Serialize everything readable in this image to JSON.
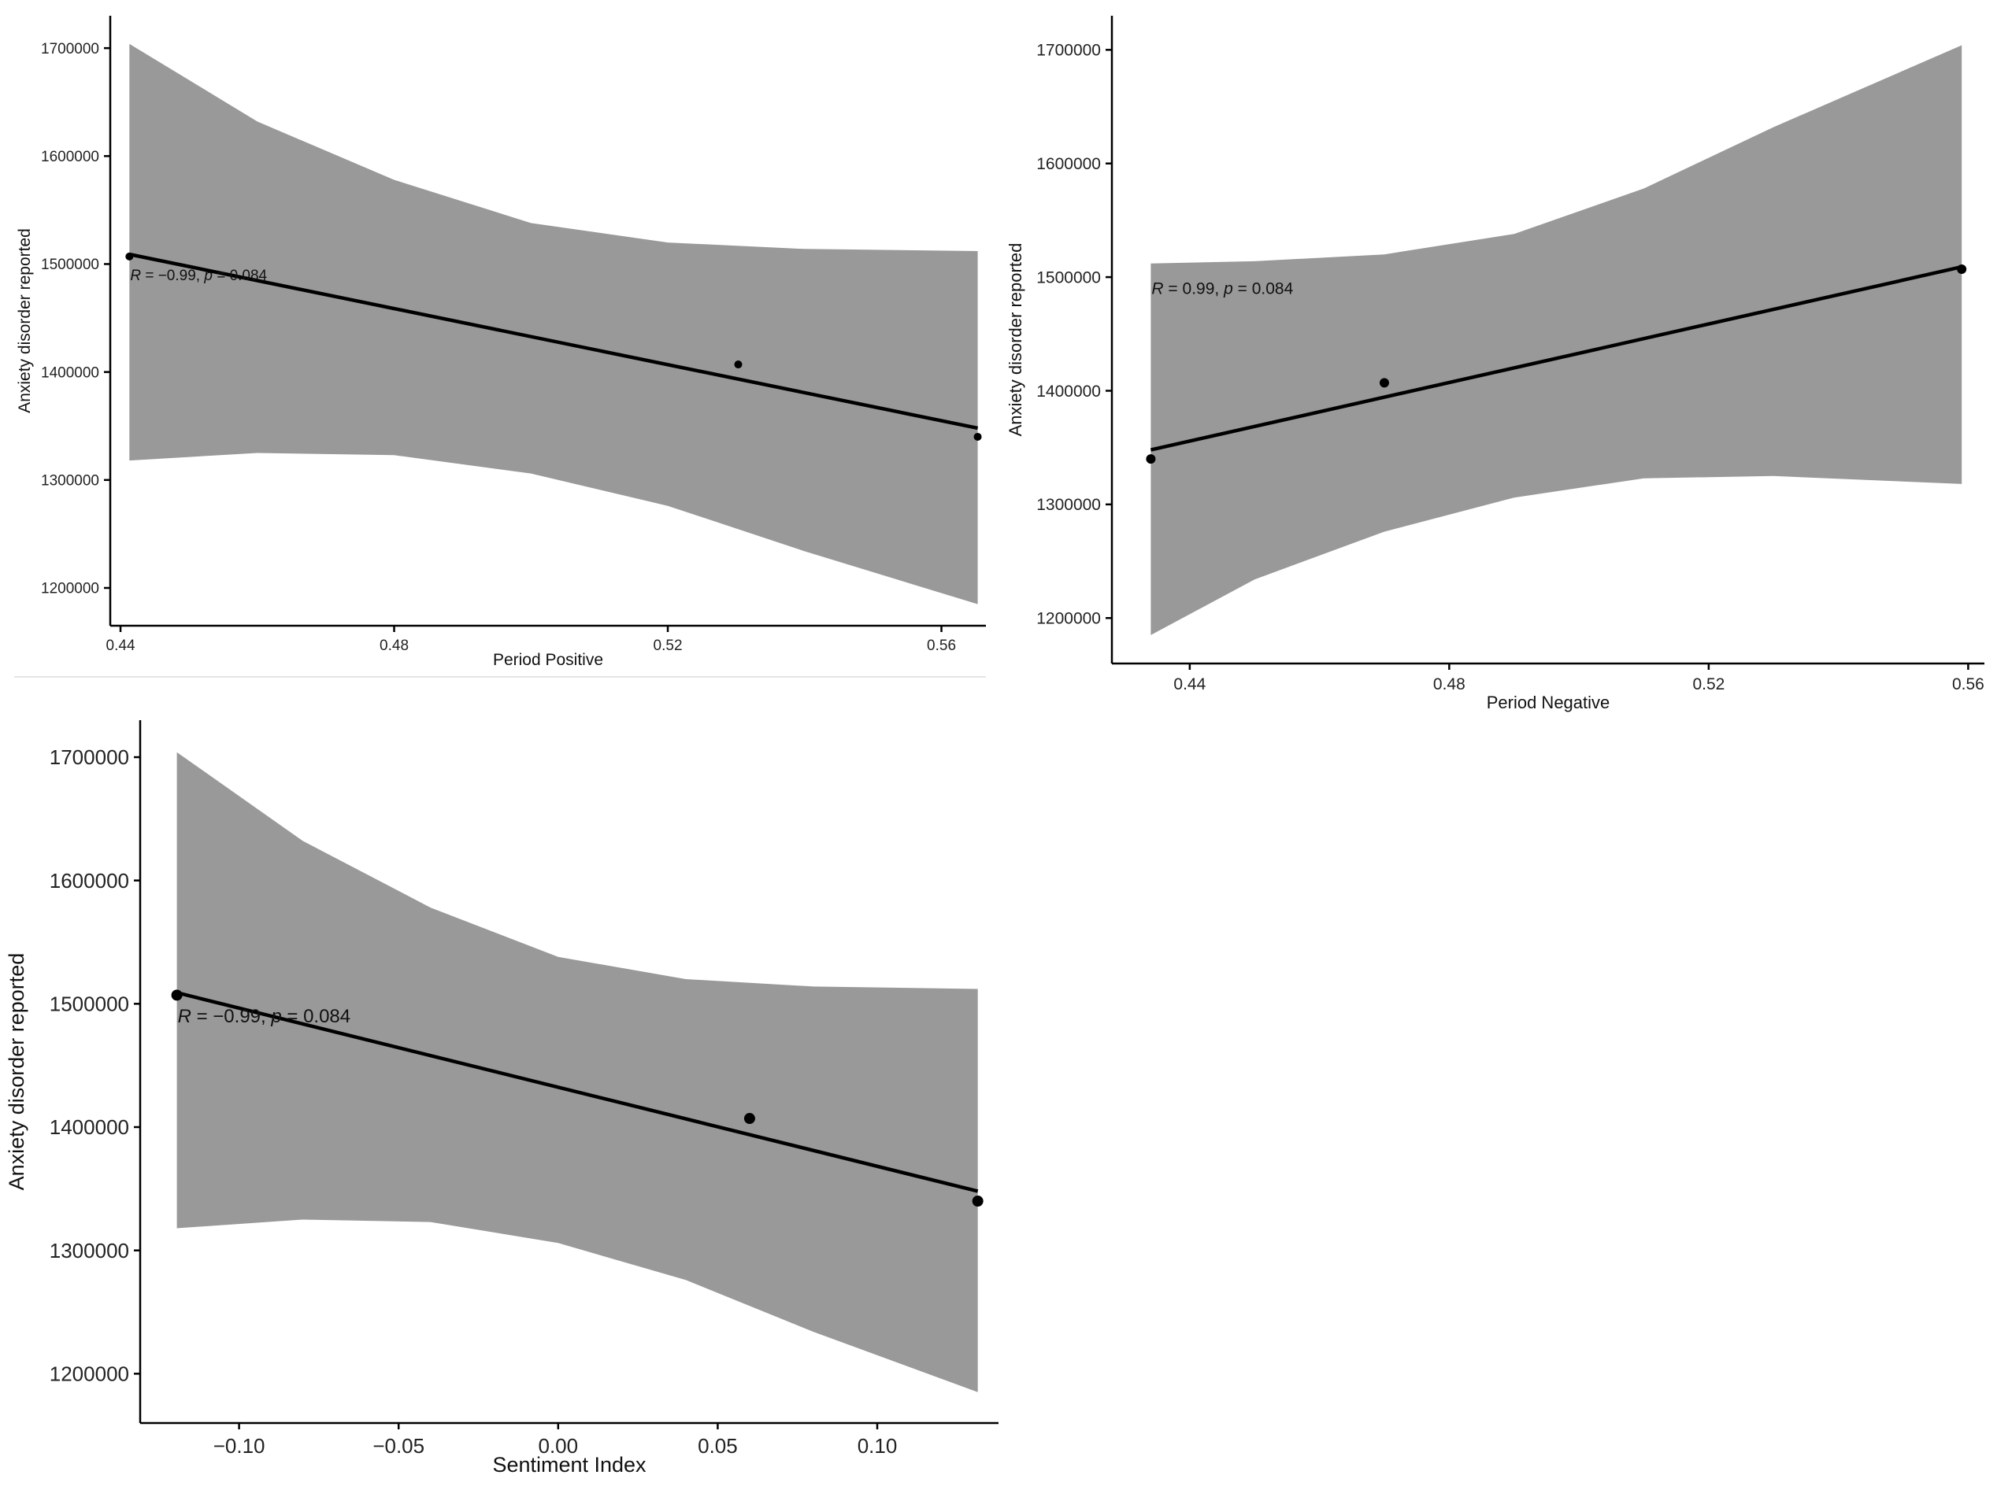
{
  "chart_data": [
    {
      "id": "top-left",
      "type": "scatter",
      "title": "",
      "xlabel": "Period Positive",
      "ylabel": "Anxiety disorder reported",
      "xlim": [
        0.4385,
        0.5665
      ],
      "ylim": [
        1165000,
        1730000
      ],
      "xticks": [
        0.44,
        0.48,
        0.52,
        0.56
      ],
      "xtick_labels": [
        "0.44",
        "0.48",
        "0.52",
        "0.56"
      ],
      "yticks": [
        1200000,
        1300000,
        1400000,
        1500000,
        1600000,
        1700000
      ],
      "ytick_labels": [
        "1200000",
        "1300000",
        "1400000",
        "1500000",
        "1600000",
        "1700000"
      ],
      "points": {
        "x": [
          0.4413,
          0.5303,
          0.5653
        ],
        "y": [
          1507000,
          1407000,
          1340000
        ]
      },
      "fit": {
        "x": [
          0.4413,
          0.5653
        ],
        "y": [
          1509000,
          1348000
        ]
      },
      "ci_band": {
        "x": [
          0.4413,
          0.46,
          0.48,
          0.5,
          0.52,
          0.54,
          0.5653
        ],
        "upper": [
          1704000,
          1632000,
          1578000,
          1538000,
          1520000,
          1514000,
          1512000
        ],
        "lower": [
          1318000,
          1325000,
          1323000,
          1306000,
          1276000,
          1234000,
          1185000
        ]
      },
      "annotation": {
        "r_label": "R",
        "r_value": " = −0.99, ",
        "p_label": "p",
        "p_value": " = 0.084"
      }
    },
    {
      "id": "top-right",
      "type": "scatter",
      "title": "",
      "xlabel": "Period Negative",
      "ylabel": "Anxiety disorder reported",
      "xlim": [
        0.428,
        0.5625
      ],
      "ylim": [
        1160000,
        1730000
      ],
      "xticks": [
        0.44,
        0.48,
        0.52,
        0.56
      ],
      "xtick_labels": [
        "0.44",
        "0.48",
        "0.52",
        "0.56"
      ],
      "yticks": [
        1200000,
        1300000,
        1400000,
        1500000,
        1600000,
        1700000
      ],
      "ytick_labels": [
        "1200000",
        "1300000",
        "1400000",
        "1500000",
        "1600000",
        "1700000"
      ],
      "points": {
        "x": [
          0.434,
          0.47,
          0.559
        ],
        "y": [
          1340000,
          1407000,
          1507000
        ]
      },
      "fit": {
        "x": [
          0.434,
          0.559
        ],
        "y": [
          1348000,
          1509000
        ]
      },
      "ci_band": {
        "x": [
          0.434,
          0.45,
          0.47,
          0.49,
          0.51,
          0.53,
          0.559
        ],
        "upper": [
          1512000,
          1514000,
          1520000,
          1538000,
          1578000,
          1632000,
          1704000
        ],
        "lower": [
          1185000,
          1234000,
          1276000,
          1306000,
          1323000,
          1325000,
          1318000
        ]
      },
      "annotation": {
        "r_label": "R",
        "r_value": " = 0.99, ",
        "p_label": "p",
        "p_value": " = 0.084"
      }
    },
    {
      "id": "bottom-left",
      "type": "scatter",
      "title": "",
      "xlabel": "Sentiment Index",
      "ylabel": "Anxiety disorder reported",
      "xlim": [
        -0.131,
        0.138
      ],
      "ylim": [
        1160000,
        1730000
      ],
      "xticks": [
        -0.1,
        -0.05,
        0.0,
        0.05,
        0.1
      ],
      "xtick_labels": [
        "−0.10",
        "−0.05",
        "0.00",
        "0.05",
        "0.10"
      ],
      "yticks": [
        1200000,
        1300000,
        1400000,
        1500000,
        1600000,
        1700000
      ],
      "ytick_labels": [
        "1200000",
        "1300000",
        "1400000",
        "1500000",
        "1600000",
        "1700000"
      ],
      "points": {
        "x": [
          -0.1195,
          0.06,
          0.1315
        ],
        "y": [
          1507000,
          1407000,
          1340000
        ]
      },
      "fit": {
        "x": [
          -0.1195,
          0.1315
        ],
        "y": [
          1509000,
          1348000
        ]
      },
      "ci_band": {
        "x": [
          -0.1195,
          -0.08,
          -0.04,
          0.0,
          0.04,
          0.08,
          0.1315
        ],
        "upper": [
          1704000,
          1632000,
          1578000,
          1538000,
          1520000,
          1514000,
          1512000
        ],
        "lower": [
          1318000,
          1325000,
          1323000,
          1306000,
          1276000,
          1234000,
          1185000
        ]
      },
      "annotation": {
        "r_label": "R",
        "r_value": " = −0.99, ",
        "p_label": "p",
        "p_value": " = 0.084"
      }
    }
  ]
}
